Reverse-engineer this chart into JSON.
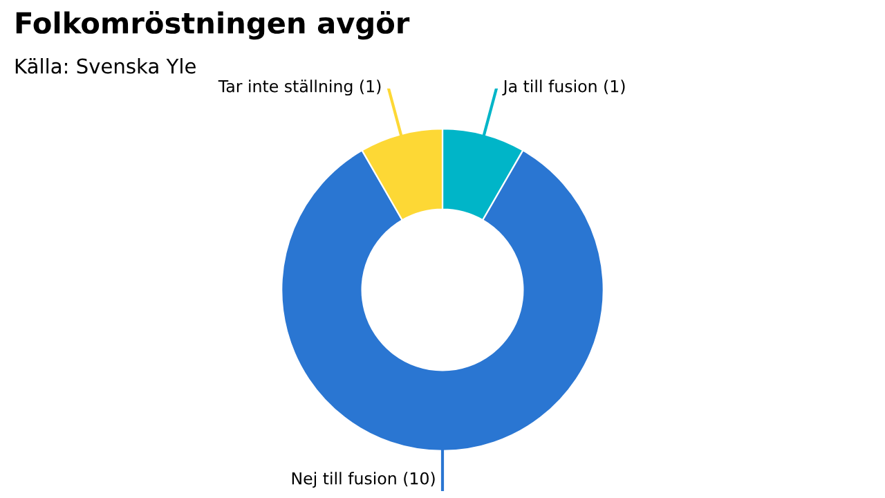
{
  "chart_data": {
    "type": "donut",
    "title": "Folkomröstningen avgör",
    "subtitle": "Källa: Svenska Yle",
    "categories": [
      "Ja till fusion (1)",
      "Nej till fusion (10)",
      "Tar inte ställning (1)"
    ],
    "values": [
      1,
      10,
      1
    ],
    "colors": [
      "#00b5c8",
      "#2a76d2",
      "#fdd835"
    ],
    "legend": false
  }
}
